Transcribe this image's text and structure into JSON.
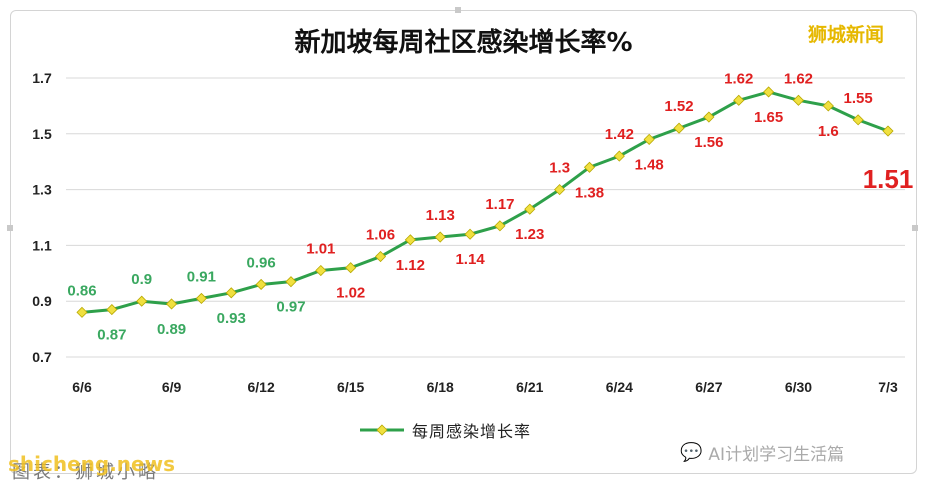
{
  "brand": "狮城新闻",
  "source_text": "图表：狮城小略",
  "source_site": "shicheng.news",
  "watermark_text": "AI计划学习生活篇",
  "colors": {
    "line": "#2ea04a",
    "marker": "#f0e040",
    "label_green": "#3aa860",
    "label_red": "#e02020",
    "grid": "#d8d8d8"
  },
  "chart_data": {
    "type": "line",
    "title": "新加坡每周社区感染增长率%",
    "xlabel": "",
    "ylabel": "",
    "ylim": [
      0.7,
      1.7
    ],
    "yticks": [
      "0.7",
      "0.9",
      "1.1",
      "1.3",
      "1.5",
      "1.7"
    ],
    "xticks": [
      "6/6",
      "6/9",
      "6/12",
      "6/15",
      "6/18",
      "6/21",
      "6/24",
      "6/27",
      "6/30",
      "7/3"
    ],
    "grid": true,
    "legend_position": "bottom",
    "x": [
      "6/6",
      "6/7",
      "6/8",
      "6/9",
      "6/10",
      "6/11",
      "6/12",
      "6/13",
      "6/14",
      "6/15",
      "6/16",
      "6/17",
      "6/18",
      "6/19",
      "6/20",
      "6/21",
      "6/22",
      "6/23",
      "6/24",
      "6/25",
      "6/26",
      "6/27",
      "6/28",
      "6/29",
      "6/30",
      "7/1",
      "7/2",
      "7/3"
    ],
    "series": [
      {
        "name": "每周感染增长率",
        "values": [
          0.86,
          0.87,
          0.9,
          0.89,
          0.91,
          0.93,
          0.96,
          0.97,
          1.01,
          1.02,
          1.06,
          1.12,
          1.13,
          1.14,
          1.17,
          1.23,
          1.3,
          1.38,
          1.42,
          1.48,
          1.52,
          1.56,
          1.62,
          1.65,
          1.62,
          1.6,
          1.55,
          1.51
        ],
        "labels": [
          "0.86",
          "0.87",
          "0.9",
          "0.89",
          "0.91",
          "0.93",
          "0.96",
          "0.97",
          "1.01",
          "1.02",
          "1.06",
          "1.12",
          "1.13",
          "1.14",
          "1.17",
          "1.23",
          "1.3",
          "1.38",
          "1.42",
          "1.48",
          "1.52",
          "1.56",
          "1.62",
          "1.65",
          "1.62",
          "1.6",
          "1.55",
          "1.51"
        ]
      }
    ]
  }
}
